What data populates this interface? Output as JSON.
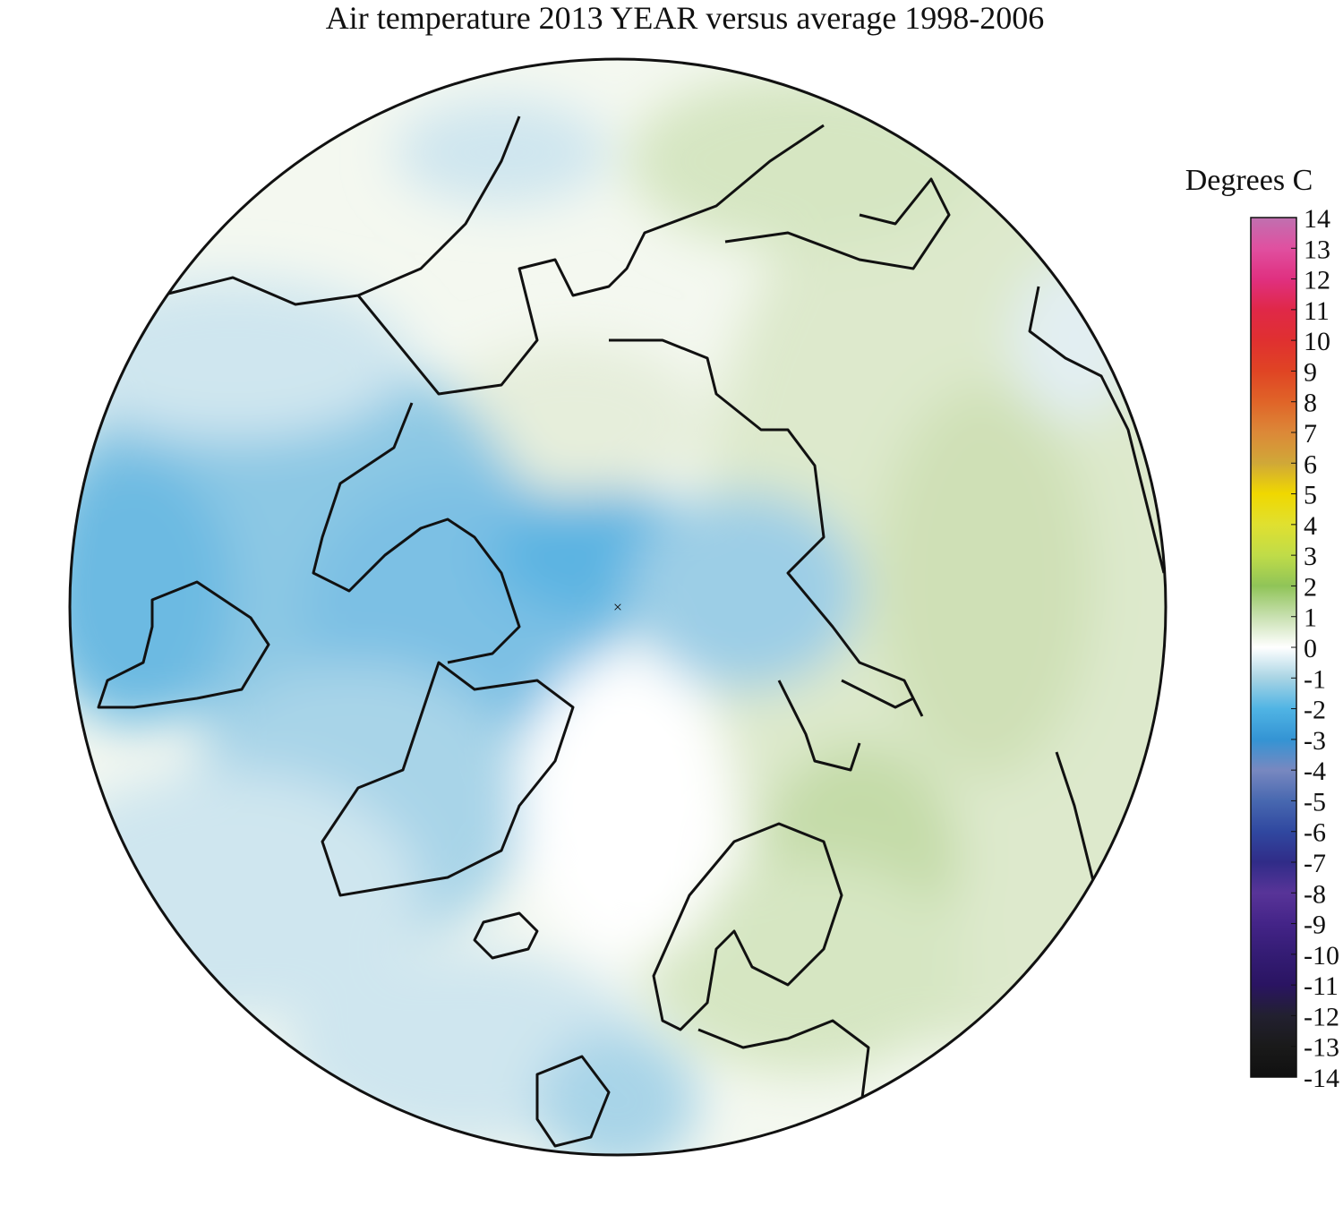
{
  "title": "Air temperature 2013 YEAR versus average 1998-2006",
  "colorbar": {
    "label": "Degrees C",
    "ticks": [
      14,
      13,
      12,
      11,
      10,
      9,
      8,
      7,
      6,
      5,
      4,
      3,
      2,
      1,
      0,
      -1,
      -2,
      -3,
      -4,
      -5,
      -6,
      -7,
      -8,
      -9,
      -10,
      -11,
      -12,
      -13,
      -14
    ],
    "colors": [
      "#c070b0",
      "#e050a0",
      "#e03080",
      "#e02848",
      "#e03030",
      "#e04424",
      "#e06428",
      "#dc8838",
      "#d0a838",
      "#f0d800",
      "#e0e030",
      "#c0dc48",
      "#90c458",
      "#c8e0b0",
      "#ffffff",
      "#a8d4e4",
      "#50b4e4",
      "#3494d4",
      "#7888c0",
      "#4868b0",
      "#3048a0",
      "#302c88",
      "#583498",
      "#442488",
      "#341c74",
      "#2a1462",
      "#222030",
      "#1a1a1a",
      "#101010"
    ]
  }
}
